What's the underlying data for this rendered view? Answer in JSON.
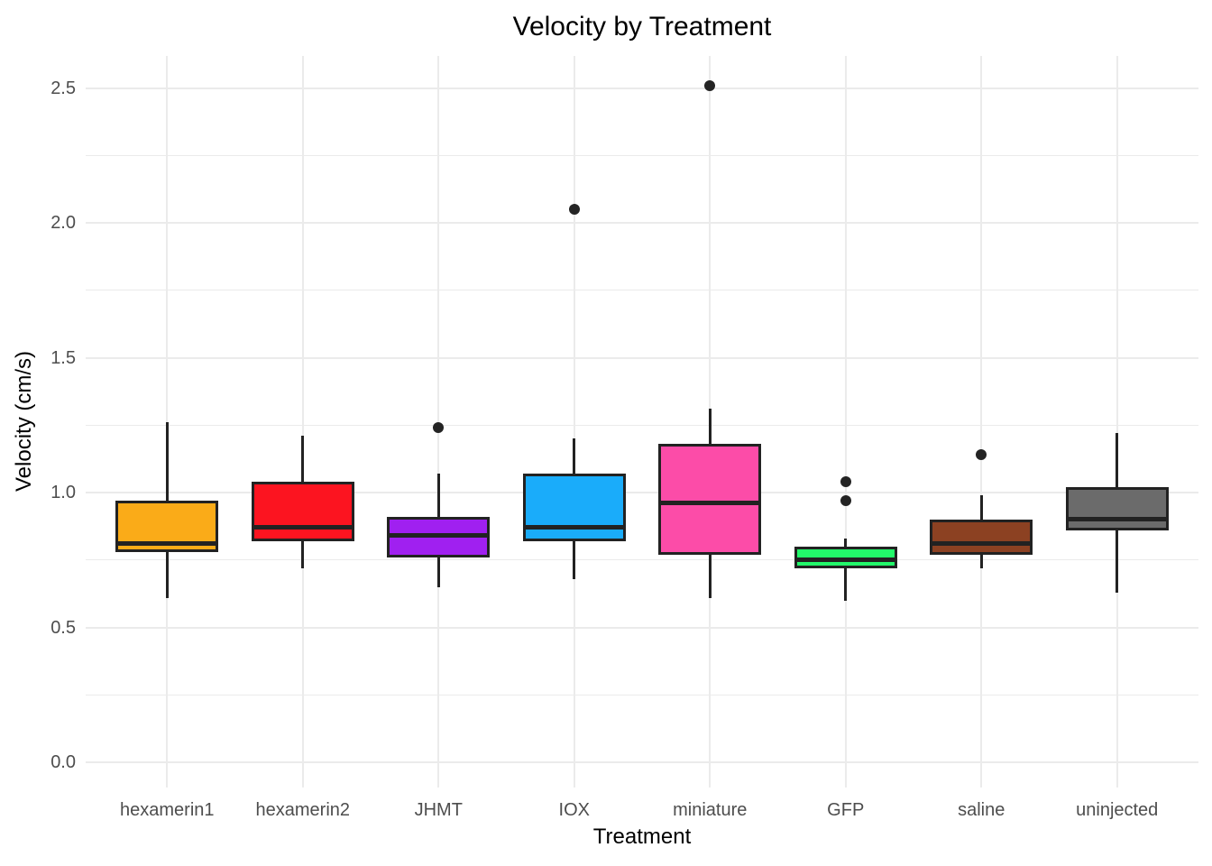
{
  "chart_data": {
    "type": "boxplot",
    "title": "Velocity by Treatment",
    "xlabel": "Treatment",
    "ylabel": "Velocity (cm/s)",
    "ylim": [
      -0.09,
      2.62
    ],
    "grid": true,
    "legend": false,
    "y_ticks": [
      {
        "label": "0.0",
        "value": 0.0
      },
      {
        "label": "0.5",
        "value": 0.5
      },
      {
        "label": "1.0",
        "value": 1.0
      },
      {
        "label": "1.5",
        "value": 1.5
      },
      {
        "label": "2.0",
        "value": 2.0
      },
      {
        "label": "2.5",
        "value": 2.5
      }
    ],
    "y_minor_ticks": [
      0.25,
      0.75,
      1.25,
      1.75,
      2.25
    ],
    "categories": [
      "hexamerin1",
      "hexamerin2",
      "JHMT",
      "IOX",
      "miniature",
      "GFP",
      "saline",
      "uninjected"
    ],
    "series": [
      {
        "name": "hexamerin1",
        "color": "#FAAB18",
        "whisker_low": 0.61,
        "q1": 0.78,
        "median": 0.81,
        "q3": 0.97,
        "whisker_high": 1.26,
        "outliers": []
      },
      {
        "name": "hexamerin2",
        "color": "#FC1420",
        "whisker_low": 0.72,
        "q1": 0.82,
        "median": 0.87,
        "q3": 1.04,
        "whisker_high": 1.21,
        "outliers": []
      },
      {
        "name": "JHMT",
        "color": "#A020F0",
        "whisker_low": 0.65,
        "q1": 0.76,
        "median": 0.84,
        "q3": 0.91,
        "whisker_high": 1.07,
        "outliers": [
          1.24
        ]
      },
      {
        "name": "IOX",
        "color": "#1AACFA",
        "whisker_low": 0.68,
        "q1": 0.82,
        "median": 0.87,
        "q3": 1.07,
        "whisker_high": 1.2,
        "outliers": [
          2.05
        ]
      },
      {
        "name": "miniature",
        "color": "#FC4CA8",
        "whisker_low": 0.61,
        "q1": 0.77,
        "median": 0.96,
        "q3": 1.18,
        "whisker_high": 1.31,
        "outliers": [
          2.51
        ]
      },
      {
        "name": "GFP",
        "color": "#22F96A",
        "whisker_low": 0.6,
        "q1": 0.72,
        "median": 0.75,
        "q3": 0.8,
        "whisker_high": 0.83,
        "outliers": [
          0.97,
          1.04
        ]
      },
      {
        "name": "saline",
        "color": "#8C4122",
        "whisker_low": 0.72,
        "q1": 0.77,
        "median": 0.81,
        "q3": 0.9,
        "whisker_high": 0.99,
        "outliers": [
          1.14
        ]
      },
      {
        "name": "uninjected",
        "color": "#6B6B6B",
        "whisker_low": 0.63,
        "q1": 0.86,
        "median": 0.9,
        "q3": 1.02,
        "whisker_high": 1.22,
        "outliers": []
      }
    ],
    "style": {
      "grid_color": "#EBEBEB",
      "box_border_color": "#222222",
      "median_color": "#222222",
      "outlier_color": "#242424",
      "tick_label_color": "#4D4D4D",
      "title_color": "#000000",
      "background": "#FFFFFF"
    }
  }
}
